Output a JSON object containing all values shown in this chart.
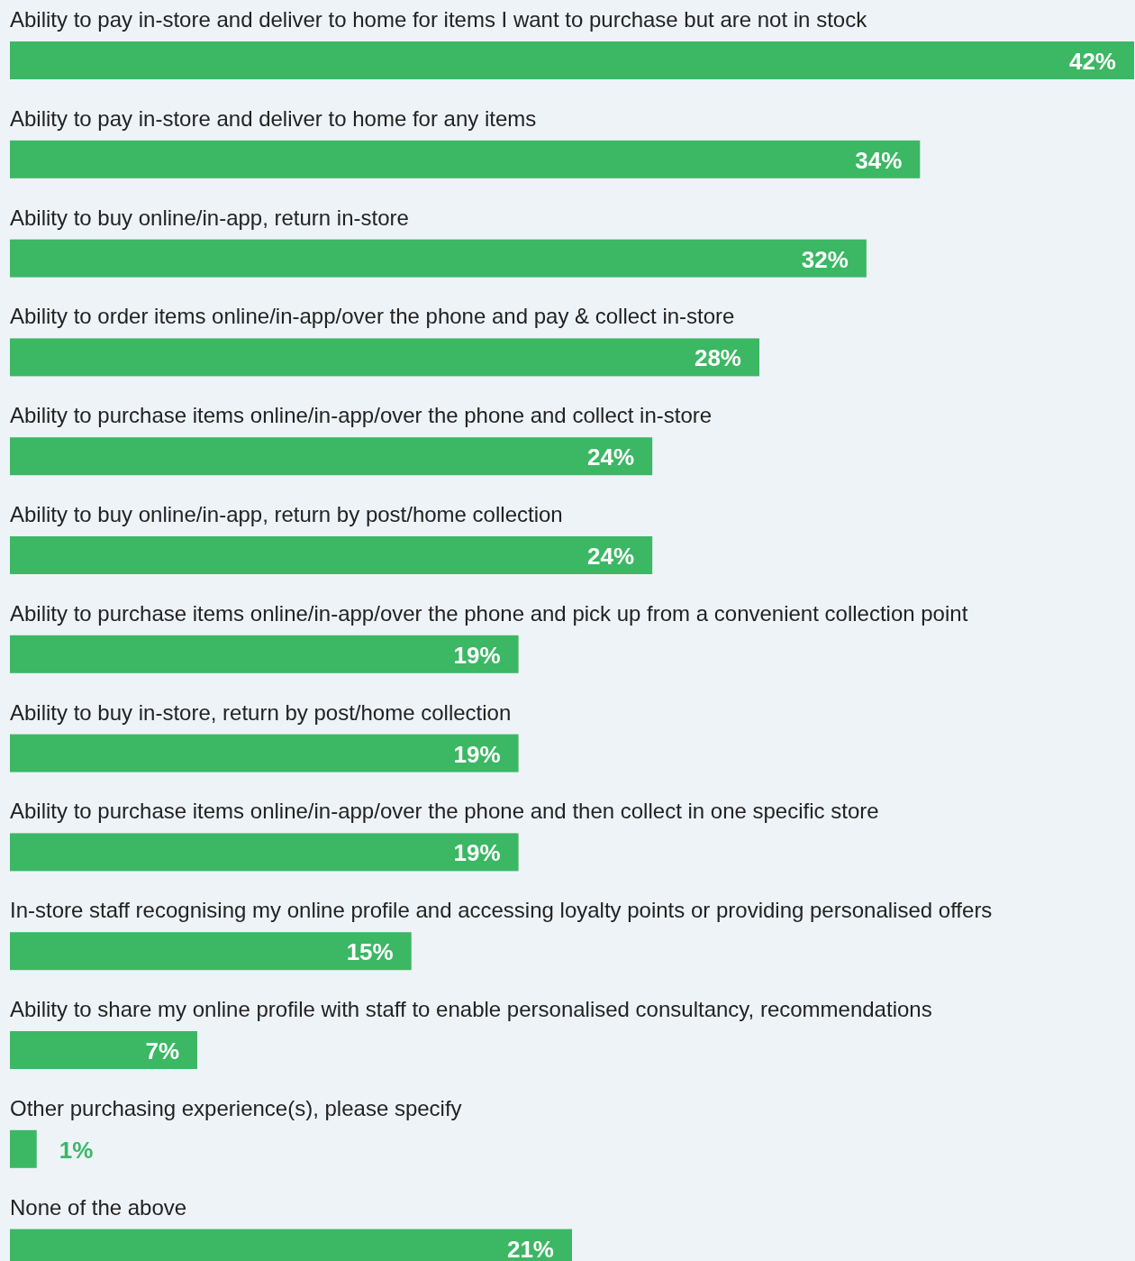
{
  "chart_data": {
    "type": "bar",
    "orientation": "horizontal",
    "color": "#3cb764",
    "categories": [
      "Ability to pay in-store and deliver to home for items I want to purchase but are not in stock",
      "Ability to pay in-store and deliver to home for any items",
      "Ability to buy online/in-app, return in-store",
      "Ability to order items online/in-app/over the phone and pay & collect in-store",
      "Ability to purchase items online/in-app/over the phone and collect in-store",
      "Ability to buy online/in-app, return by post/home collection",
      "Ability to purchase items online/in-app/over the phone and pick up from a convenient collection point",
      "Ability to buy in-store, return by post/home collection",
      "Ability to purchase items online/in-app/over the phone and then collect in one specific store",
      "In-store staff recognising my online profile and accessing loyalty points or providing personalised offers",
      "Ability to share my online profile with staff to enable personalised consultancy, recommendations",
      "Other purchasing experience(s), please specify",
      "None of the above"
    ],
    "values": [
      42,
      34,
      32,
      28,
      24,
      24,
      19,
      19,
      19,
      15,
      7,
      1,
      21
    ],
    "value_labels": [
      "42%",
      "34%",
      "32%",
      "28%",
      "24%",
      "24%",
      "19%",
      "19%",
      "19%",
      "15%",
      "7%",
      "1%",
      "21%"
    ]
  }
}
